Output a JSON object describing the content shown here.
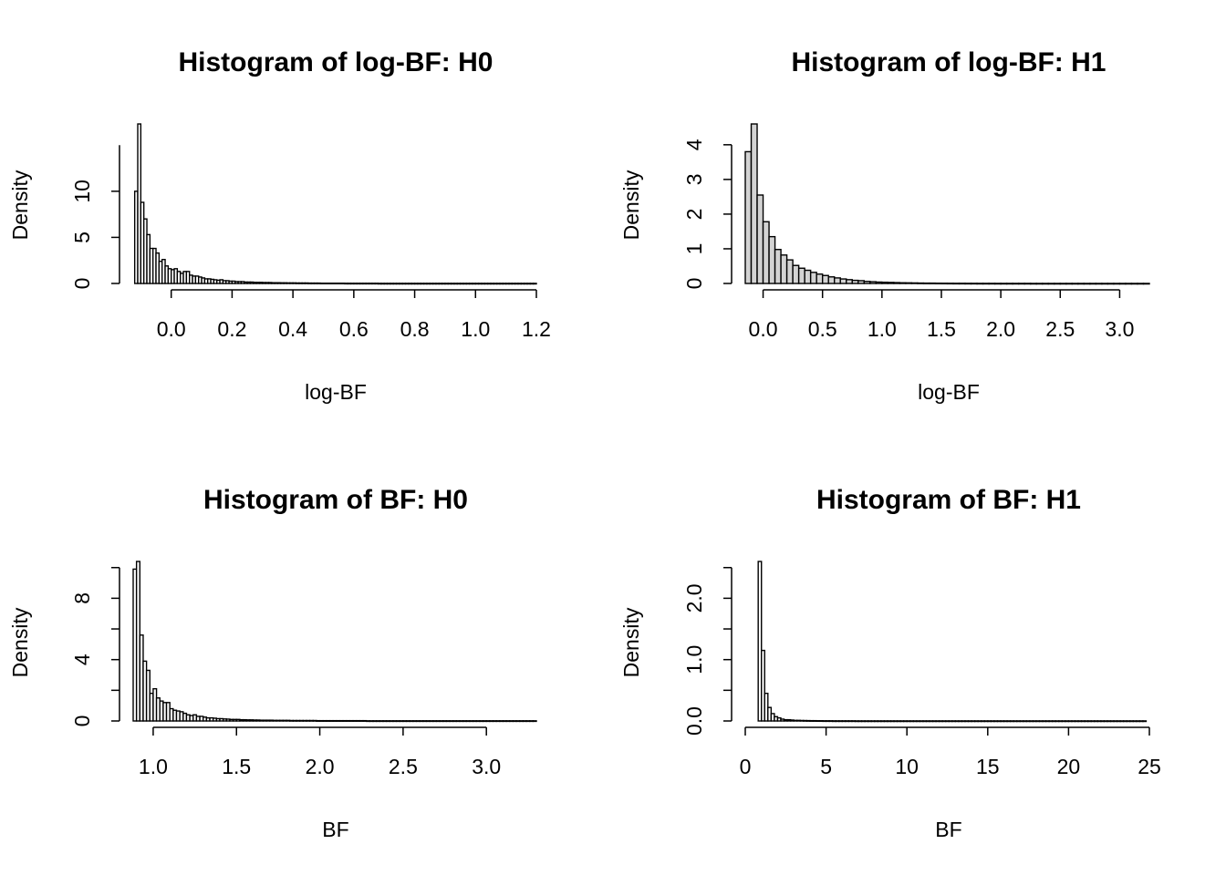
{
  "chart_data": [
    {
      "type": "bar",
      "title": "Histogram of log-BF: H0",
      "xlabel": "log-BF",
      "ylabel": "Density",
      "x_ticks": [
        "0.0",
        "0.2",
        "0.4",
        "0.6",
        "0.8",
        "1.0",
        "1.2"
      ],
      "x_tick_values": [
        0,
        0.2,
        0.4,
        0.6,
        0.8,
        1.0,
        1.2
      ],
      "y_ticks": [
        "0",
        "5",
        "10"
      ],
      "y_tick_values": [
        0,
        5,
        10
      ],
      "y_axis_max": 15,
      "xlim": [
        -0.125,
        1.2
      ],
      "ylim": [
        0,
        17.3
      ],
      "bin_start": -0.12,
      "bin_width": 0.01,
      "bar_fill": "#ffffff",
      "values": [
        10.0,
        17.3,
        8.8,
        7.0,
        5.3,
        3.8,
        3.8,
        3.3,
        2.4,
        2.6,
        1.9,
        1.6,
        1.5,
        1.6,
        1.3,
        1.1,
        1.3,
        1.3,
        0.9,
        0.8,
        0.8,
        0.7,
        0.6,
        0.5,
        0.5,
        0.45,
        0.4,
        0.35,
        0.4,
        0.3,
        0.3,
        0.25,
        0.25,
        0.2,
        0.2,
        0.2,
        0.15,
        0.15,
        0.15,
        0.12,
        0.12,
        0.12,
        0.1,
        0.1,
        0.1,
        0.08,
        0.08,
        0.08,
        0.07,
        0.07,
        0.06,
        0.06,
        0.06,
        0.05,
        0.05,
        0.05,
        0.05,
        0.04,
        0.04,
        0.04,
        0.04,
        0.03,
        0.03,
        0.03,
        0.03,
        0.03,
        0.03,
        0.03,
        0.03,
        0.02,
        0.02,
        0.02,
        0.02,
        0.02,
        0.02,
        0.02,
        0.02,
        0.02,
        0.02,
        0.02,
        0.01,
        0.01,
        0.01,
        0.01,
        0.01,
        0.01,
        0.01,
        0.01,
        0.01,
        0.01,
        0.01,
        0.01,
        0.01,
        0.01,
        0.01,
        0.01,
        0.01,
        0.01,
        0.01,
        0.01,
        0.01,
        0.01,
        0.01,
        0.01,
        0.01,
        0.01,
        0.01,
        0.01,
        0.01,
        0.01,
        0.01,
        0.01,
        0.01,
        0.01,
        0.01,
        0.01,
        0.01,
        0.01,
        0.01,
        0.01,
        0.01,
        0.01,
        0.01,
        0.01,
        0.01,
        0.01,
        0.01,
        0.01,
        0.01,
        0.01,
        0.01,
        0.01
      ]
    },
    {
      "type": "bar",
      "title": "Histogram of log-BF: H1",
      "xlabel": "log-BF",
      "ylabel": "Density",
      "x_ticks": [
        "0.0",
        "0.5",
        "1.0",
        "1.5",
        "2.0",
        "2.5",
        "3.0"
      ],
      "x_tick_values": [
        0,
        0.5,
        1.0,
        1.5,
        2.0,
        2.5,
        3.0
      ],
      "y_ticks": [
        "0",
        "1",
        "2",
        "3",
        "4"
      ],
      "y_tick_values": [
        0,
        1,
        2,
        3,
        4
      ],
      "y_axis_max": 4,
      "xlim": [
        -0.15,
        3.25
      ],
      "ylim": [
        0,
        4.6
      ],
      "bin_start": -0.15,
      "bin_width": 0.05,
      "bar_fill": "#d3d3d3",
      "values": [
        3.8,
        4.6,
        2.55,
        1.78,
        1.35,
        0.98,
        0.82,
        0.68,
        0.52,
        0.44,
        0.38,
        0.32,
        0.27,
        0.23,
        0.19,
        0.16,
        0.13,
        0.11,
        0.09,
        0.08,
        0.06,
        0.05,
        0.04,
        0.035,
        0.03,
        0.025,
        0.02,
        0.018,
        0.015,
        0.012,
        0.01,
        0.01,
        0.008,
        0.007,
        0.006,
        0.005,
        0.005,
        0.004,
        0.004,
        0.003,
        0.003,
        0.003,
        0.002,
        0.002,
        0.002,
        0.002,
        0.002,
        0.002,
        0.001,
        0.001,
        0.001,
        0.001,
        0.001,
        0.001,
        0.001,
        0.001,
        0.001,
        0.001,
        0.001,
        0.001,
        0.001,
        0.001,
        0.001,
        0.001,
        0.001,
        0.001,
        0.001,
        0.001
      ]
    },
    {
      "type": "bar",
      "title": "Histogram of BF: H0",
      "xlabel": "BF",
      "ylabel": "Density",
      "x_ticks": [
        "1.0",
        "1.5",
        "2.0",
        "2.5",
        "3.0"
      ],
      "x_tick_values": [
        1.0,
        1.5,
        2.0,
        2.5,
        3.0
      ],
      "y_ticks": [
        "0",
        "4",
        "8"
      ],
      "y_tick_values": [
        0,
        4,
        8
      ],
      "y_minor_tick_values": [
        2,
        6,
        10
      ],
      "y_axis_max": 10,
      "xlim": [
        0.88,
        3.3
      ],
      "ylim": [
        0,
        10.4
      ],
      "bin_start": 0.88,
      "bin_width": 0.02,
      "bar_fill": "#ffffff",
      "values": [
        9.9,
        10.4,
        5.6,
        3.9,
        3.3,
        1.8,
        2.1,
        1.5,
        1.3,
        1.2,
        1.2,
        0.8,
        0.7,
        0.65,
        0.6,
        0.5,
        0.4,
        0.35,
        0.4,
        0.3,
        0.3,
        0.25,
        0.2,
        0.2,
        0.18,
        0.15,
        0.15,
        0.13,
        0.12,
        0.1,
        0.1,
        0.1,
        0.08,
        0.08,
        0.07,
        0.07,
        0.06,
        0.06,
        0.05,
        0.05,
        0.05,
        0.05,
        0.04,
        0.04,
        0.04,
        0.04,
        0.04,
        0.03,
        0.03,
        0.03,
        0.03,
        0.03,
        0.03,
        0.03,
        0.03,
        0.02,
        0.02,
        0.02,
        0.02,
        0.02,
        0.02,
        0.02,
        0.02,
        0.02,
        0.02,
        0.02,
        0.02,
        0.02,
        0.02,
        0.02,
        0.01,
        0.01,
        0.01,
        0.01,
        0.01,
        0.01,
        0.01,
        0.01,
        0.01,
        0.01,
        0.01,
        0.01,
        0.01,
        0.01,
        0.01,
        0.01,
        0.01,
        0.01,
        0.01,
        0.01,
        0.01,
        0.01,
        0.01,
        0.01,
        0.01,
        0.01,
        0.01,
        0.01,
        0.01,
        0.01,
        0.01,
        0.01,
        0.01,
        0.01,
        0.01,
        0.01,
        0.01,
        0.01,
        0.01,
        0.01,
        0.01,
        0.01,
        0.01,
        0.01,
        0.01,
        0.01,
        0.01,
        0.01,
        0.01,
        0.01,
        0.01
      ]
    },
    {
      "type": "bar",
      "title": "Histogram of BF: H1",
      "xlabel": "BF",
      "ylabel": "Density",
      "x_ticks": [
        "0",
        "5",
        "10",
        "15",
        "20",
        "25"
      ],
      "x_tick_values": [
        0,
        5,
        10,
        15,
        20,
        25
      ],
      "y_ticks": [
        "0.0",
        "1.0",
        "2.0"
      ],
      "y_tick_values": [
        0,
        1.0,
        2.0
      ],
      "y_minor_tick_values": [
        0.5,
        1.5,
        2.5
      ],
      "y_axis_max": 2.5,
      "xlim": [
        0,
        25
      ],
      "ylim": [
        0,
        2.6
      ],
      "bin_start": 0.8,
      "bin_width": 0.2,
      "bar_fill": "#ffffff",
      "values": [
        2.6,
        1.15,
        0.45,
        0.22,
        0.12,
        0.07,
        0.05,
        0.03,
        0.02,
        0.02,
        0.015,
        0.01,
        0.01,
        0.008,
        0.007,
        0.006,
        0.005,
        0.005,
        0.004,
        0.004,
        0.003,
        0.003,
        0.003,
        0.002,
        0.002,
        0.002,
        0.002,
        0.002,
        0.002,
        0.002,
        0.001,
        0.001,
        0.001,
        0.001,
        0.001,
        0.001,
        0.001,
        0.001,
        0.001,
        0.001,
        0.001,
        0.001,
        0.001,
        0.001,
        0.001,
        0.001,
        0.001,
        0.001,
        0.001,
        0.001,
        0.001,
        0.001,
        0.001,
        0.001,
        0.001,
        0.001,
        0.001,
        0.001,
        0.001,
        0.001,
        0.001,
        0.001,
        0.001,
        0.001,
        0.001,
        0.001,
        0.001,
        0.001,
        0.001,
        0.001,
        0.001,
        0.001,
        0.001,
        0.001,
        0.001,
        0.001,
        0.001,
        0.001,
        0.001,
        0.001,
        0.001,
        0.001,
        0.001,
        0.001,
        0.001,
        0.001,
        0.001,
        0.001,
        0.001,
        0.001,
        0.001,
        0.001,
        0.001,
        0.001,
        0.001,
        0.001,
        0.001,
        0.001,
        0.001,
        0.001,
        0.001,
        0.001,
        0.001,
        0.001,
        0.001,
        0.001,
        0.001,
        0.001,
        0.001,
        0.001,
        0.001,
        0.001,
        0.001,
        0.001,
        0.001,
        0.001,
        0.001,
        0.001,
        0.001,
        0.001
      ]
    }
  ]
}
